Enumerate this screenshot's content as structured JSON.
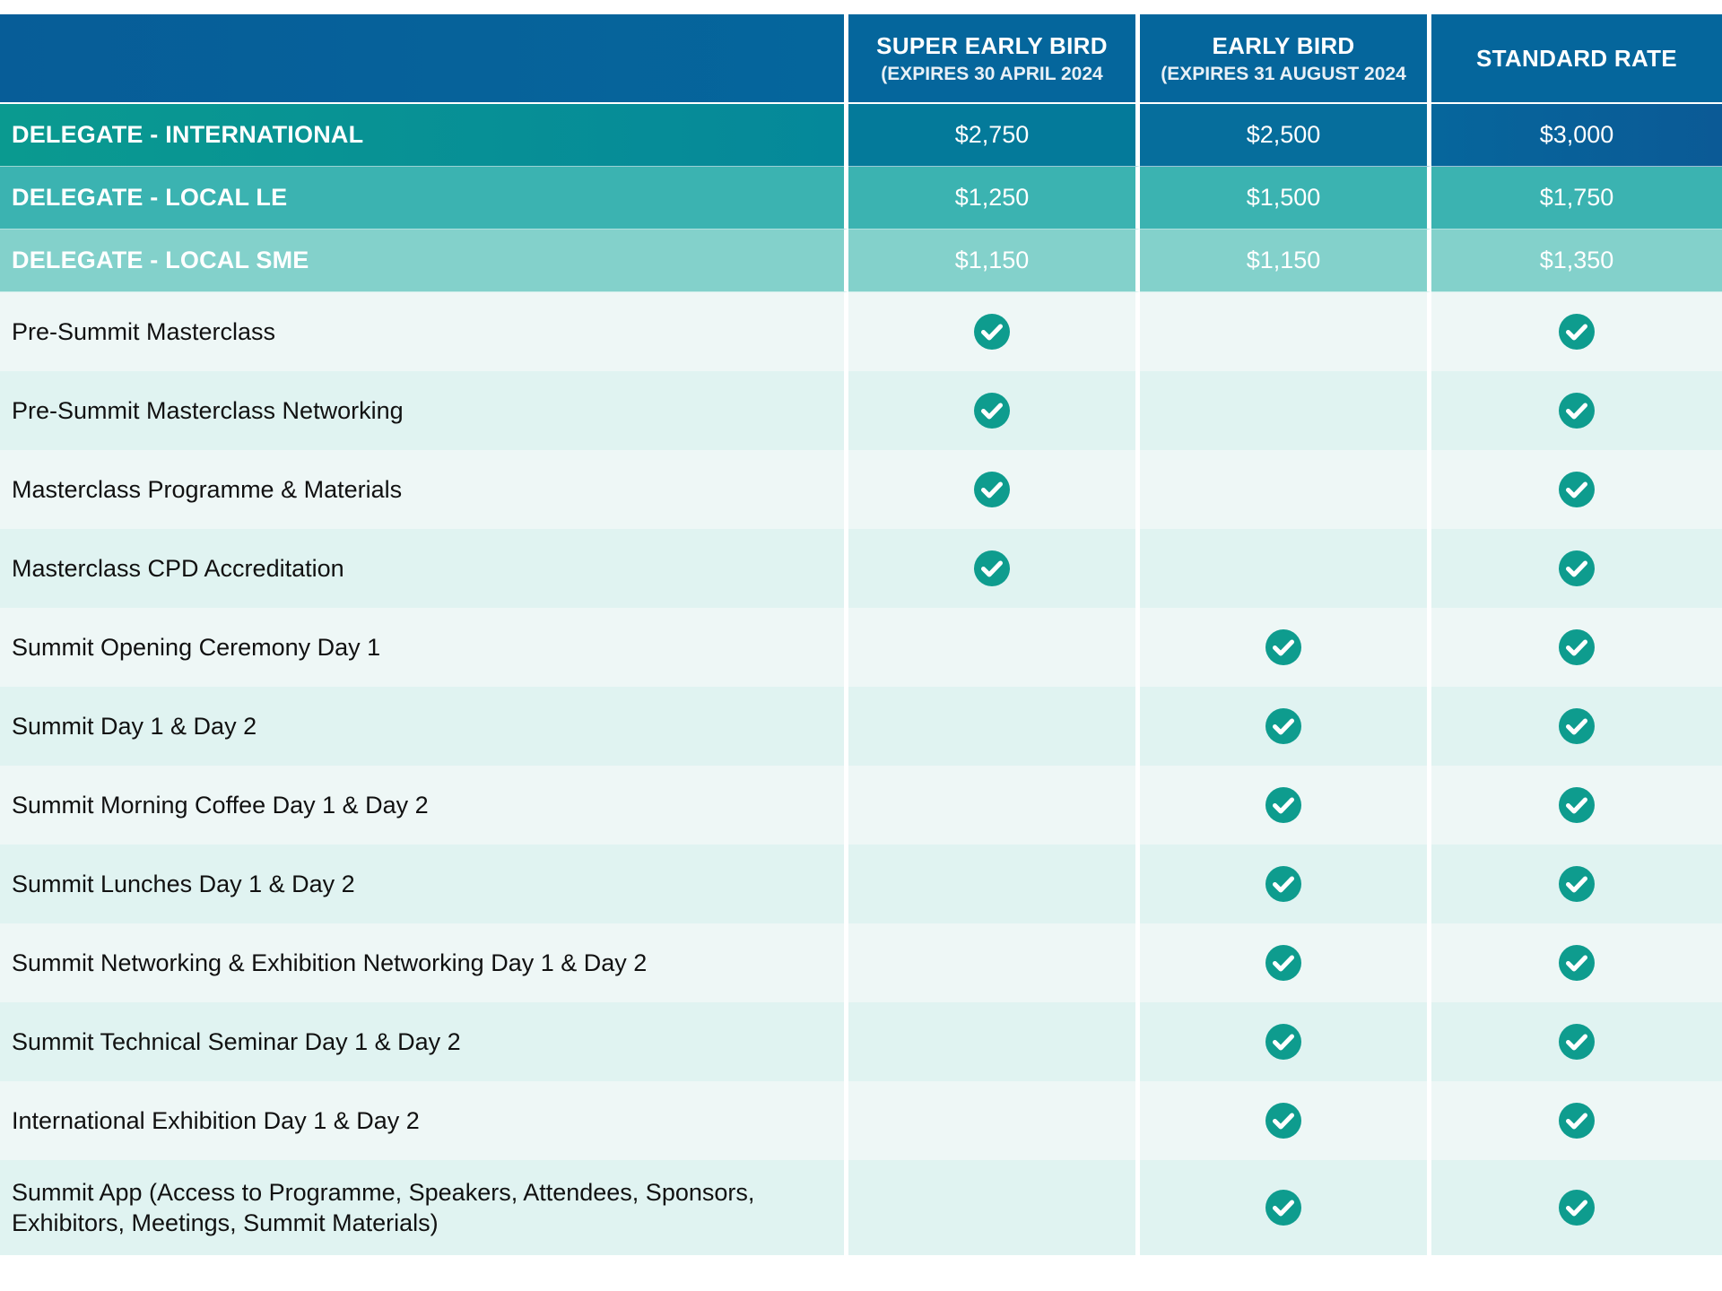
{
  "header": {
    "columns": [
      {
        "title": "SUPER EARLY BIRD",
        "subtitle": "(EXPIRES 30 APRIL 2024"
      },
      {
        "title": "EARLY BIRD",
        "subtitle": "(EXPIRES 31 AUGUST 2024"
      },
      {
        "title": "STANDARD RATE",
        "subtitle": ""
      }
    ]
  },
  "prices": [
    {
      "label": "DELEGATE - INTERNATIONAL",
      "values": [
        "$2,750",
        "$2,500",
        "$3,000"
      ]
    },
    {
      "label": "DELEGATE - LOCAL LE",
      "values": [
        "$1,250",
        "$1,500",
        "$1,750"
      ]
    },
    {
      "label": "DELEGATE - LOCAL SME",
      "values": [
        "$1,150",
        "$1,150",
        "$1,350"
      ]
    }
  ],
  "features": [
    {
      "label": "Pre-Summit Masterclass",
      "included": [
        true,
        false,
        true
      ]
    },
    {
      "label": "Pre-Summit Masterclass Networking",
      "included": [
        true,
        false,
        true
      ]
    },
    {
      "label": "Masterclass Programme & Materials",
      "included": [
        true,
        false,
        true
      ]
    },
    {
      "label": "Masterclass CPD Accreditation",
      "included": [
        true,
        false,
        true
      ]
    },
    {
      "label": "Summit Opening Ceremony Day 1",
      "included": [
        false,
        true,
        true
      ]
    },
    {
      "label": "Summit Day 1 & Day 2",
      "included": [
        false,
        true,
        true
      ]
    },
    {
      "label": "Summit Morning Coffee Day 1 & Day 2",
      "included": [
        false,
        true,
        true
      ]
    },
    {
      "label": "Summit Lunches Day 1 & Day 2",
      "included": [
        false,
        true,
        true
      ]
    },
    {
      "label": "Summit Networking & Exhibition Networking Day 1 & Day 2",
      "included": [
        false,
        true,
        true
      ]
    },
    {
      "label": "Summit Technical Seminar Day 1 & Day 2",
      "included": [
        false,
        true,
        true
      ]
    },
    {
      "label": "International Exhibition Day 1 & Day 2",
      "included": [
        false,
        true,
        true
      ]
    },
    {
      "label": "Summit App (Access to Programme, Speakers, Attendees, Sponsors, Exhibitors, Meetings, Summit Materials)",
      "included": [
        false,
        true,
        true
      ]
    }
  ],
  "colors": {
    "check": "#0e9c8e",
    "header": "#05669c"
  },
  "icons": {
    "check": "check-circle-icon"
  }
}
